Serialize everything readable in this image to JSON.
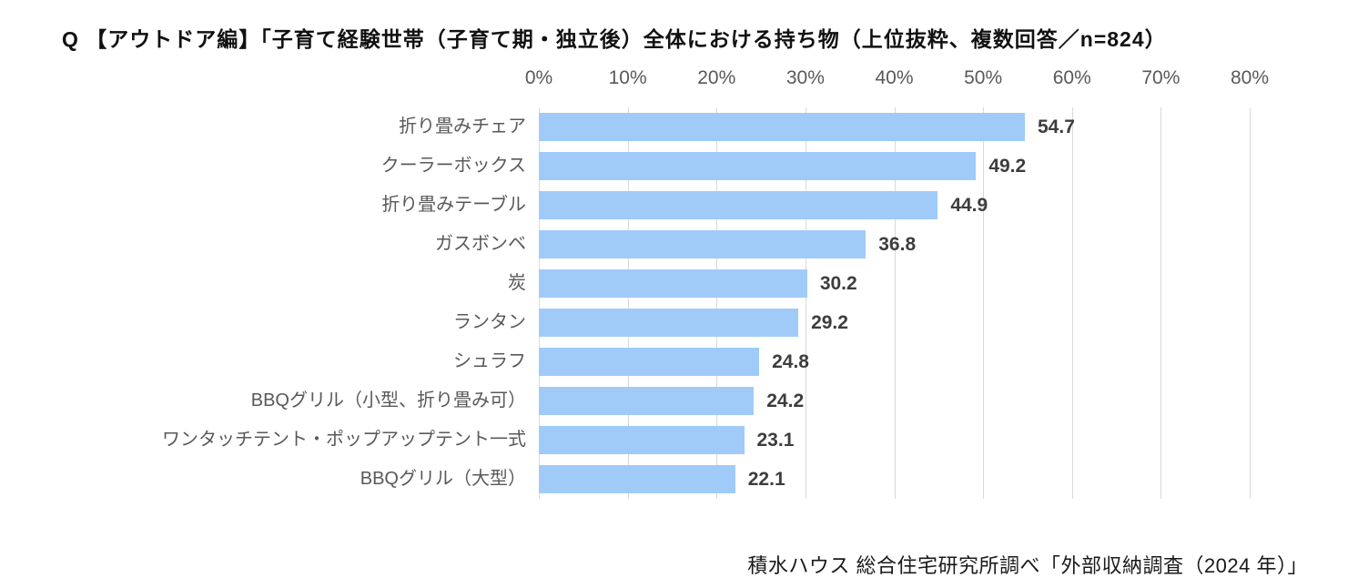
{
  "title": "Q 【アウトドア編】「子育て経験世帯（子育て期・独立後）全体における持ち物（上位抜粋、複数回答／n=824）",
  "source_note": "積水ハウス 総合住宅研究所調べ「外部収納調査（2024 年）」",
  "colors": {
    "bar": "#a0cbf8",
    "gridline": "#d9d9d9",
    "axis_text": "#595959",
    "category_text": "#595959",
    "value_text": "#3d3d3d",
    "title_text": "#111111"
  },
  "chart_data": {
    "type": "bar",
    "orientation": "horizontal",
    "title": "Q 【アウトドア編】「子育て経験世帯（子育て期・独立後）全体における持ち物（上位抜粋、複数回答／n=824）",
    "categories": [
      "折り畳みチェア",
      "クーラーボックス",
      "折り畳みテーブル",
      "ガスボンベ",
      "炭",
      "ランタン",
      "シュラフ",
      "BBQグリル（小型、折り畳み可）",
      "ワンタッチテント・ポップアップテント一式",
      "BBQグリル（大型）"
    ],
    "values": [
      54.7,
      49.2,
      44.9,
      36.8,
      30.2,
      29.2,
      24.8,
      24.2,
      23.1,
      22.1
    ],
    "xlabel": "",
    "ylabel": "",
    "xlim": [
      0,
      80
    ],
    "tick_step": 10,
    "tick_labels": [
      "0%",
      "10%",
      "20%",
      "30%",
      "40%",
      "50%",
      "60%",
      "70%",
      "80%"
    ],
    "grid": true,
    "value_labels_shown": true,
    "legend": "none"
  }
}
